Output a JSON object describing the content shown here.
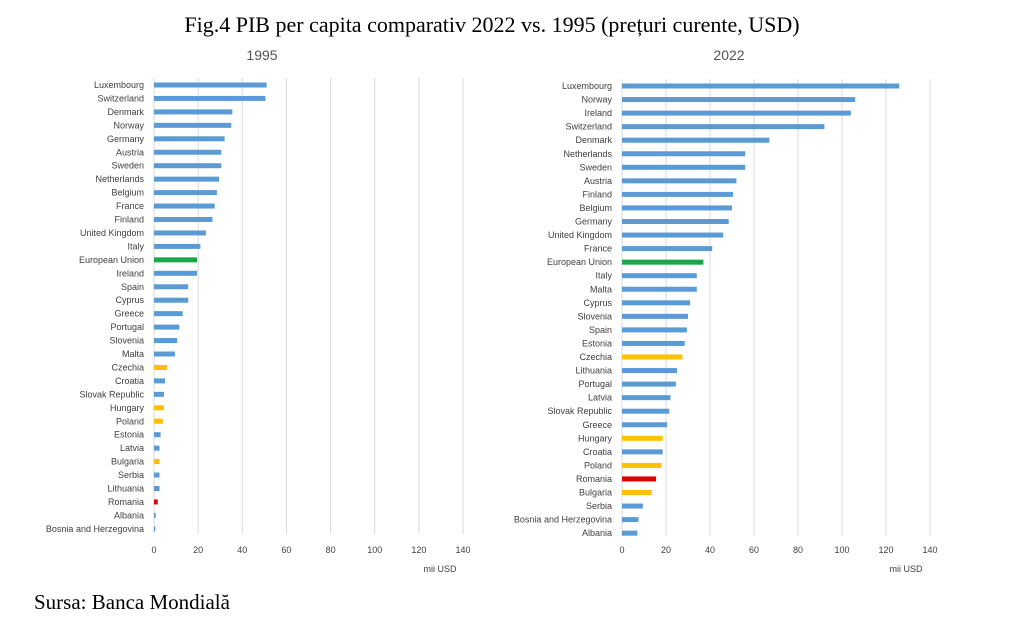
{
  "title": "Fig.4 PIB per capita comparativ 2022 vs. 1995 (prețuri curente, USD)",
  "source": "Sursa: Banca Mondială",
  "colors": {
    "default": "#5b9bd5",
    "eu": "#1aa64a",
    "highlight": "#ffc000",
    "romania": "#e00000"
  },
  "chart_data": [
    {
      "type": "bar",
      "title": "1995",
      "xlabel": "mii USD",
      "xlim": [
        0,
        140
      ],
      "xticks": [
        0,
        20,
        40,
        60,
        80,
        100,
        120,
        140
      ],
      "grid": true,
      "categories": [
        "Luxembourg",
        "Switzerland",
        "Denmark",
        "Norway",
        "Germany",
        "Austria",
        "Sweden",
        "Netherlands",
        "Belgium",
        "France",
        "Finland",
        "United Kingdom",
        "Italy",
        "European Union",
        "Ireland",
        "Spain",
        "Cyprus",
        "Greece",
        "Portugal",
        "Slovenia",
        "Malta",
        "Czechia",
        "Croatia",
        "Slovak Republic",
        "Hungary",
        "Poland",
        "Estonia",
        "Latvia",
        "Bulgaria",
        "Serbia",
        "Lithuania",
        "Romania",
        "Albania",
        "Bosnia and Herzegovina"
      ],
      "values": [
        51,
        50.5,
        35.5,
        35,
        32,
        30.5,
        30.5,
        29.5,
        28.5,
        27.5,
        26.5,
        23.5,
        21,
        19.5,
        19.5,
        15.5,
        15.5,
        13,
        11.5,
        10.5,
        9.5,
        6,
        5,
        4.5,
        4.5,
        4,
        3,
        2.5,
        2.5,
        2.5,
        2.5,
        1.7,
        0.8,
        0.6
      ],
      "colors": [
        "default",
        "default",
        "default",
        "default",
        "default",
        "default",
        "default",
        "default",
        "default",
        "default",
        "default",
        "default",
        "default",
        "eu",
        "default",
        "default",
        "default",
        "default",
        "default",
        "default",
        "default",
        "highlight",
        "default",
        "default",
        "highlight",
        "highlight",
        "default",
        "default",
        "highlight",
        "default",
        "default",
        "romania",
        "default",
        "default"
      ]
    },
    {
      "type": "bar",
      "title": "2022",
      "xlabel": "mii USD",
      "xlim": [
        0,
        140
      ],
      "xticks": [
        0,
        20,
        40,
        60,
        80,
        100,
        120,
        140
      ],
      "grid": true,
      "categories": [
        "Luxembourg",
        "Norway",
        "Ireland",
        "Switzerland",
        "Denmark",
        "Netherlands",
        "Sweden",
        "Austria",
        "Finland",
        "Belgium",
        "Germany",
        "United Kingdom",
        "France",
        "European Union",
        "Italy",
        "Malta",
        "Cyprus",
        "Slovenia",
        "Spain",
        "Estonia",
        "Czechia",
        "Lithuania",
        "Portugal",
        "Latvia",
        "Slovak Republic",
        "Greece",
        "Hungary",
        "Croatia",
        "Poland",
        "Romania",
        "Bulgaria",
        "Serbia",
        "Bosnia and Herzegovina",
        "Albania"
      ],
      "values": [
        126,
        106,
        104,
        92,
        67,
        56,
        56,
        52,
        50.5,
        50,
        48.5,
        46,
        41,
        37,
        34,
        34,
        31,
        30,
        29.5,
        28.5,
        27.5,
        25,
        24.5,
        22,
        21.5,
        20.5,
        18.5,
        18.5,
        18,
        15.5,
        13.5,
        9.5,
        7.5,
        7
      ],
      "colors": [
        "default",
        "default",
        "default",
        "default",
        "default",
        "default",
        "default",
        "default",
        "default",
        "default",
        "default",
        "default",
        "default",
        "eu",
        "default",
        "default",
        "default",
        "default",
        "default",
        "default",
        "highlight",
        "default",
        "default",
        "default",
        "default",
        "default",
        "highlight",
        "default",
        "highlight",
        "romania",
        "highlight",
        "default",
        "default",
        "default"
      ]
    }
  ]
}
